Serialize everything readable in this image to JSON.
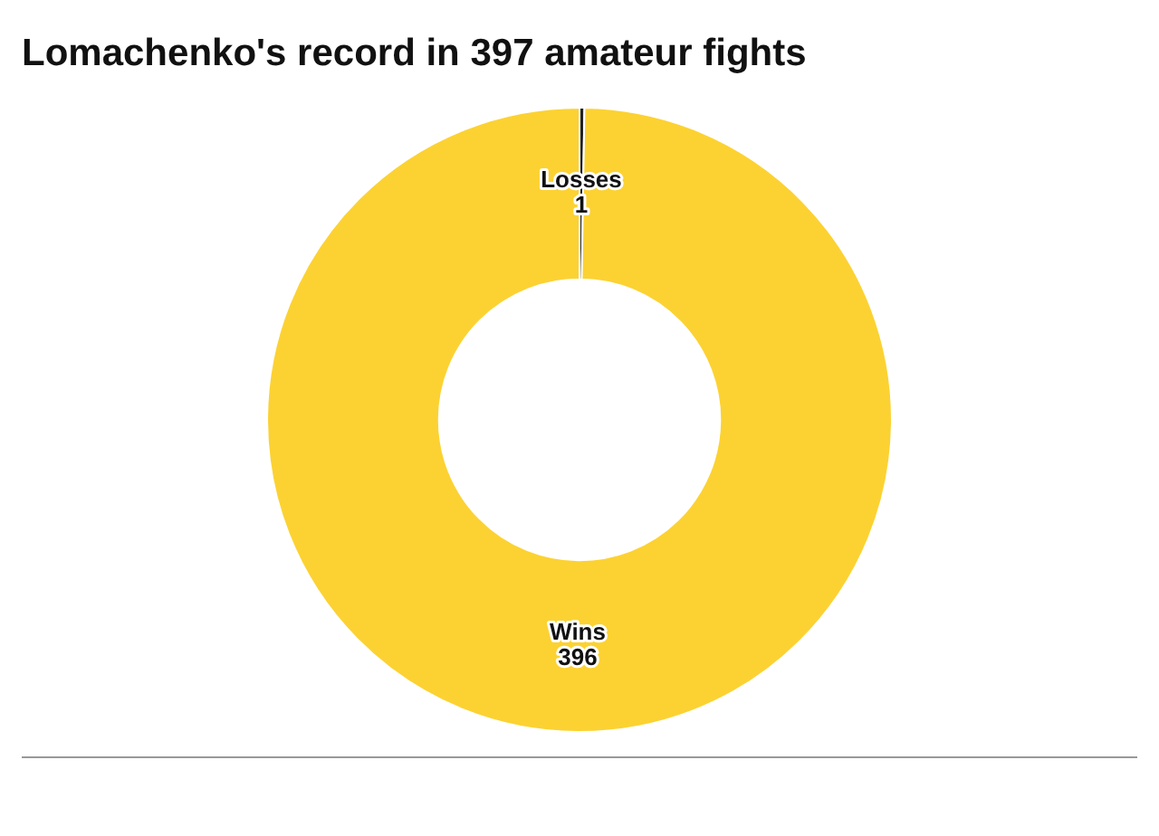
{
  "chart_data": {
    "type": "donut",
    "title": "Lomachenko's record in 397 amateur fights",
    "categories": [
      "Losses",
      "Wins"
    ],
    "values": [
      1,
      396
    ],
    "colors": [
      "#222222",
      "#fcd232"
    ],
    "data_labels": true,
    "legend": false
  }
}
